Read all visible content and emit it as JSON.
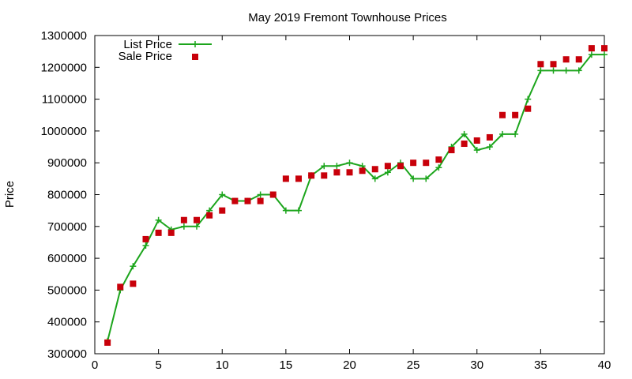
{
  "chart_data": {
    "type": "line",
    "title": "May 2019 Fremont Townhouse Prices",
    "xlabel": "",
    "ylabel": "Price",
    "xlim": [
      0,
      40
    ],
    "ylim": [
      300000,
      1300000
    ],
    "xticks": [
      0,
      5,
      10,
      15,
      20,
      25,
      30,
      35,
      40
    ],
    "yticks": [
      300000,
      400000,
      500000,
      600000,
      700000,
      800000,
      900000,
      1000000,
      1100000,
      1200000,
      1300000
    ],
    "grid": false,
    "legend_position": "top-left",
    "series": [
      {
        "name": "List Price",
        "style": "line-with-plus-markers",
        "color": "#1ca51c",
        "x": [
          1,
          2,
          3,
          4,
          5,
          6,
          7,
          8,
          9,
          10,
          11,
          12,
          13,
          14,
          15,
          16,
          17,
          18,
          19,
          20,
          21,
          22,
          23,
          24,
          25,
          26,
          27,
          28,
          29,
          30,
          31,
          32,
          33,
          34,
          35,
          36,
          37,
          38,
          39,
          40
        ],
        "values": [
          340000,
          500000,
          575000,
          640000,
          720000,
          690000,
          700000,
          700000,
          750000,
          800000,
          780000,
          780000,
          800000,
          800000,
          750000,
          750000,
          860000,
          890000,
          890000,
          900000,
          890000,
          850000,
          870000,
          900000,
          850000,
          850000,
          885000,
          950000,
          990000,
          940000,
          950000,
          990000,
          990000,
          1100000,
          1190000,
          1190000,
          1190000,
          1190000,
          1240000,
          1240000
        ]
      },
      {
        "name": "Sale Price",
        "style": "square-markers",
        "color": "#c8000a",
        "x": [
          1,
          2,
          3,
          4,
          5,
          6,
          7,
          8,
          9,
          10,
          11,
          12,
          13,
          14,
          15,
          16,
          17,
          18,
          19,
          20,
          21,
          22,
          23,
          24,
          25,
          26,
          27,
          28,
          29,
          30,
          31,
          32,
          33,
          34,
          35,
          36,
          37,
          38,
          39,
          40
        ],
        "values": [
          335000,
          510000,
          520000,
          660000,
          680000,
          680000,
          720000,
          720000,
          735000,
          750000,
          780000,
          780000,
          780000,
          800000,
          850000,
          850000,
          860000,
          860000,
          870000,
          870000,
          875000,
          880000,
          890000,
          890000,
          900000,
          900000,
          910000,
          940000,
          960000,
          970000,
          980000,
          1050000,
          1050000,
          1070000,
          1210000,
          1210000,
          1225000,
          1225000,
          1260000,
          1260000
        ]
      }
    ]
  }
}
